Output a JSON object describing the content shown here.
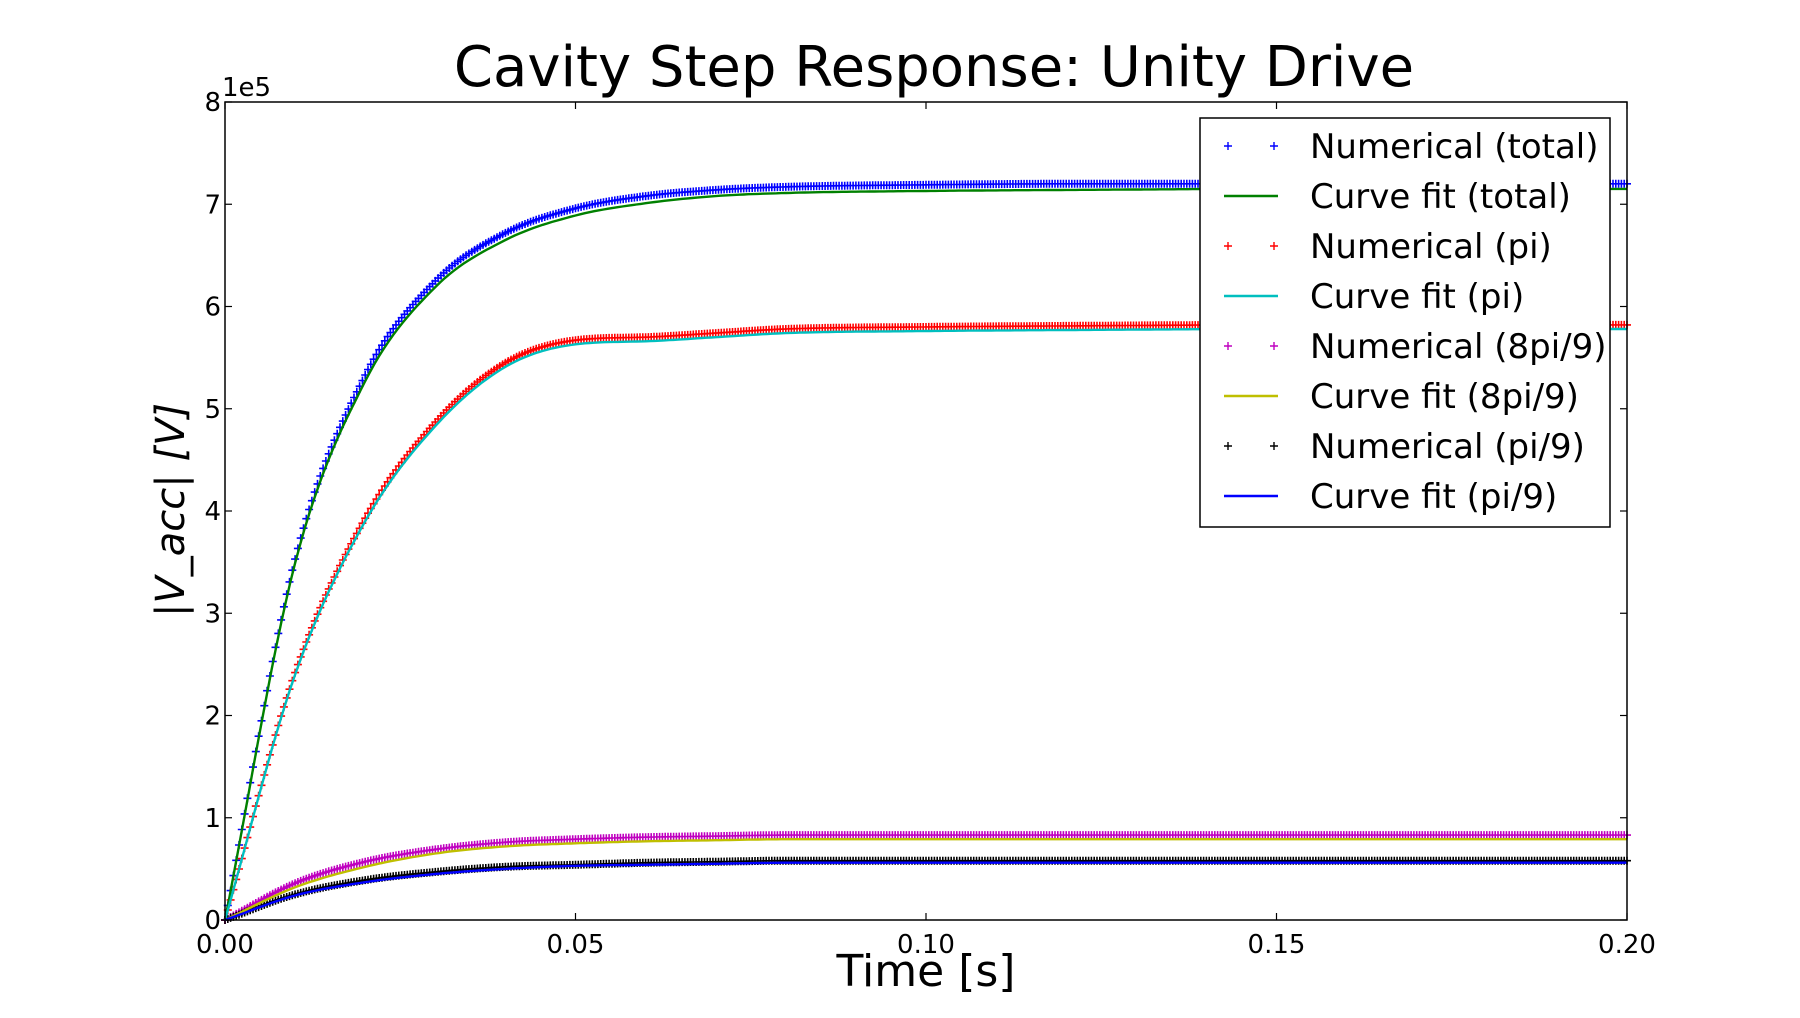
{
  "chart_data": {
    "type": "line",
    "title": "Cavity Step Response: Unity Drive",
    "xlabel": "Time [s]",
    "ylabel": "|V_acc| [V]",
    "y_multiplier_label": "1e5",
    "xlim": [
      0.0,
      0.2
    ],
    "ylim": [
      0,
      8
    ],
    "xticks": [
      0.0,
      0.05,
      0.1,
      0.15,
      0.2
    ],
    "xtick_labels": [
      "0.00",
      "0.05",
      "0.10",
      "0.15",
      "0.20"
    ],
    "yticks": [
      0,
      1,
      2,
      3,
      4,
      5,
      6,
      7,
      8
    ],
    "ytick_labels": [
      "0",
      "1",
      "2",
      "3",
      "4",
      "5",
      "6",
      "7",
      "8"
    ],
    "grid": false,
    "legend_position": "top-right",
    "x": [
      0.0,
      0.01,
      0.02,
      0.03,
      0.04,
      0.05,
      0.06,
      0.07,
      0.08,
      0.1,
      0.12,
      0.15,
      0.2
    ],
    "series": [
      {
        "name": "Numerical (total)",
        "style": "markers",
        "color": "#0000ff",
        "values": [
          0.0,
          3.53,
          5.33,
          6.25,
          6.72,
          6.96,
          7.08,
          7.14,
          7.17,
          7.19,
          7.2,
          7.2,
          7.2
        ]
      },
      {
        "name": "Curve fit (total)",
        "style": "line",
        "color": "#008000",
        "values": [
          0.0,
          3.49,
          5.27,
          6.19,
          6.65,
          6.89,
          7.01,
          7.08,
          7.11,
          7.13,
          7.14,
          7.15,
          7.15
        ]
      },
      {
        "name": "Numerical (pi)",
        "style": "markers",
        "color": "#ff0000",
        "values": [
          0.0,
          2.42,
          3.93,
          4.87,
          5.45,
          5.67,
          5.7,
          5.74,
          5.78,
          5.8,
          5.81,
          5.82,
          5.82
        ]
      },
      {
        "name": "Curve fit (pi)",
        "style": "line",
        "color": "#00bfbf",
        "values": [
          0.0,
          2.4,
          3.9,
          4.83,
          5.41,
          5.63,
          5.66,
          5.7,
          5.74,
          5.76,
          5.77,
          5.78,
          5.78
        ]
      },
      {
        "name": "Numerical (8pi/9)",
        "style": "markers",
        "color": "#bf00bf",
        "values": [
          0.0,
          0.36,
          0.57,
          0.69,
          0.76,
          0.79,
          0.81,
          0.82,
          0.83,
          0.83,
          0.83,
          0.83,
          0.83
        ]
      },
      {
        "name": "Curve fit (8pi/9)",
        "style": "line",
        "color": "#bfbf00",
        "values": [
          0.0,
          0.32,
          0.52,
          0.65,
          0.72,
          0.75,
          0.77,
          0.78,
          0.79,
          0.79,
          0.79,
          0.79,
          0.79
        ]
      },
      {
        "name": "Numerical (pi/9)",
        "style": "markers",
        "color": "#000000",
        "values": [
          0.0,
          0.25,
          0.39,
          0.47,
          0.52,
          0.54,
          0.56,
          0.57,
          0.58,
          0.58,
          0.58,
          0.58,
          0.58
        ]
      },
      {
        "name": "Curve fit (pi/9)",
        "style": "line",
        "color": "#0000ff",
        "values": [
          0.0,
          0.24,
          0.37,
          0.45,
          0.5,
          0.53,
          0.54,
          0.55,
          0.56,
          0.56,
          0.56,
          0.56,
          0.56
        ]
      }
    ]
  }
}
